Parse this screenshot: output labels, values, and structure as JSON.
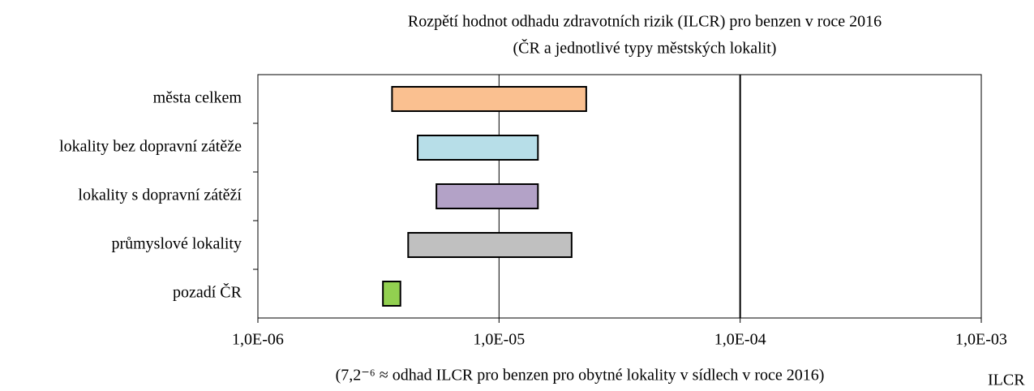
{
  "chart_data": {
    "type": "floating-bar",
    "title": [
      "Rozpětí hodnot odhadu zdravotních rizik (ILCR) pro benzen v roce 2016",
      "(ČR a jednotlivé typy městských lokalit)"
    ],
    "x_label": "(7,2⁻⁶ ≈ odhad ILCR pro benzen pro obytné lokality v sídlech v roce 2016)",
    "x_unit": "ILCR",
    "categories": [
      "města celkem",
      "lokality bez dopravní zátěže",
      "lokality s dopravní zátěží",
      "průmyslové lokality",
      "pozadí ČR"
    ],
    "values": [
      [
        3.6e-06,
        2.3e-05
      ],
      [
        4.6e-06,
        1.45e-05
      ],
      [
        5.5e-06,
        1.45e-05
      ],
      [
        4.2e-06,
        2e-05
      ],
      [
        3.3e-06,
        3.9e-06
      ]
    ],
    "colors": [
      "#fac090",
      "#b7dee8",
      "#b3a2c7",
      "#c0c0c0",
      "#92d050"
    ],
    "xlim": [
      1e-06,
      0.001
    ],
    "xscale": "log",
    "xticks": [
      {
        "value": 1e-06,
        "label": "1,0E-06"
      },
      {
        "value": 1e-05,
        "label": "1,0E-05"
      },
      {
        "value": 0.0001,
        "label": "1,0E-04"
      },
      {
        "value": 0.001,
        "label": "1,0E-03"
      }
    ],
    "grid": true,
    "reference_x": 0.0001
  }
}
